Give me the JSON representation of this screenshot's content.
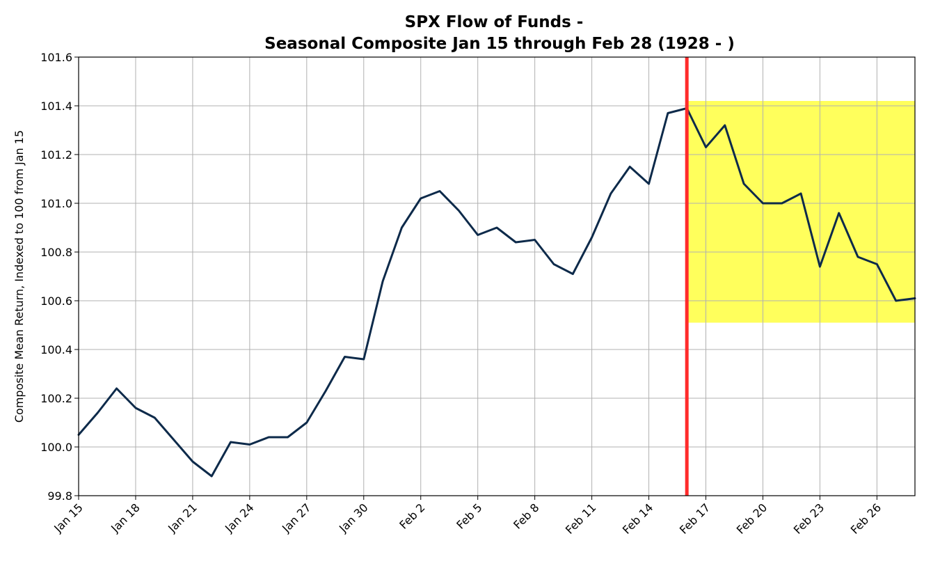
{
  "chart_data": {
    "type": "line",
    "title_line1": "SPX Flow of Funds -",
    "title_line2": "Seasonal Composite Jan 15 through Feb 28 (1928 - )",
    "xlabel": "",
    "ylabel": "Composite Mean Return, Indexed to 100 from Jan 15",
    "ylim": [
      99.8,
      101.6
    ],
    "yticks": [
      "99.8",
      "100.0",
      "100.2",
      "100.4",
      "100.6",
      "100.8",
      "101.0",
      "101.2",
      "101.4",
      "101.6"
    ],
    "x_dates": [
      "Jan 15",
      "Jan 16",
      "Jan 17",
      "Jan 18",
      "Jan 19",
      "Jan 20",
      "Jan 21",
      "Jan 22",
      "Jan 23",
      "Jan 24",
      "Jan 25",
      "Jan 26",
      "Jan 27",
      "Jan 28",
      "Jan 29",
      "Jan 30",
      "Jan 31",
      "Feb 1",
      "Feb 2",
      "Feb 3",
      "Feb 4",
      "Feb 5",
      "Feb 6",
      "Feb 7",
      "Feb 8",
      "Feb 9",
      "Feb 10",
      "Feb 11",
      "Feb 12",
      "Feb 13",
      "Feb 14",
      "Feb 15",
      "Feb 16",
      "Feb 17",
      "Feb 18",
      "Feb 19",
      "Feb 20",
      "Feb 21",
      "Feb 22",
      "Feb 23",
      "Feb 24",
      "Feb 25",
      "Feb 26",
      "Feb 27",
      "Feb 28"
    ],
    "xticks": [
      "Jan 15",
      "Jan 18",
      "Jan 21",
      "Jan 24",
      "Jan 27",
      "Jan 30",
      "Feb 2",
      "Feb 5",
      "Feb 8",
      "Feb 11",
      "Feb 14",
      "Feb 17",
      "Feb 20",
      "Feb 23",
      "Feb 26"
    ],
    "series": [
      {
        "values": [
          100.05,
          100.14,
          100.24,
          100.16,
          100.12,
          100.03,
          99.94,
          99.88,
          100.02,
          100.01,
          100.04,
          100.04,
          100.1,
          100.23,
          100.37,
          100.36,
          100.68,
          100.9,
          101.02,
          101.05,
          100.97,
          100.87,
          100.9,
          100.84,
          100.85,
          100.75,
          100.71,
          100.86,
          101.04,
          101.15,
          101.08,
          101.37,
          101.39,
          101.23,
          101.32,
          101.08,
          101.0,
          101.0,
          101.04,
          100.74,
          100.96,
          100.78,
          100.75,
          100.6,
          100.61
        ],
        "color": "#0d2a4a"
      }
    ],
    "vertical_line": {
      "x": "Feb 16",
      "color": "#ff2b2b"
    },
    "highlight": {
      "x_start": "Feb 16",
      "x_end": "Feb 28",
      "y_low": 100.51,
      "y_high": 101.42,
      "color": "#ffff33"
    },
    "grid": true
  }
}
